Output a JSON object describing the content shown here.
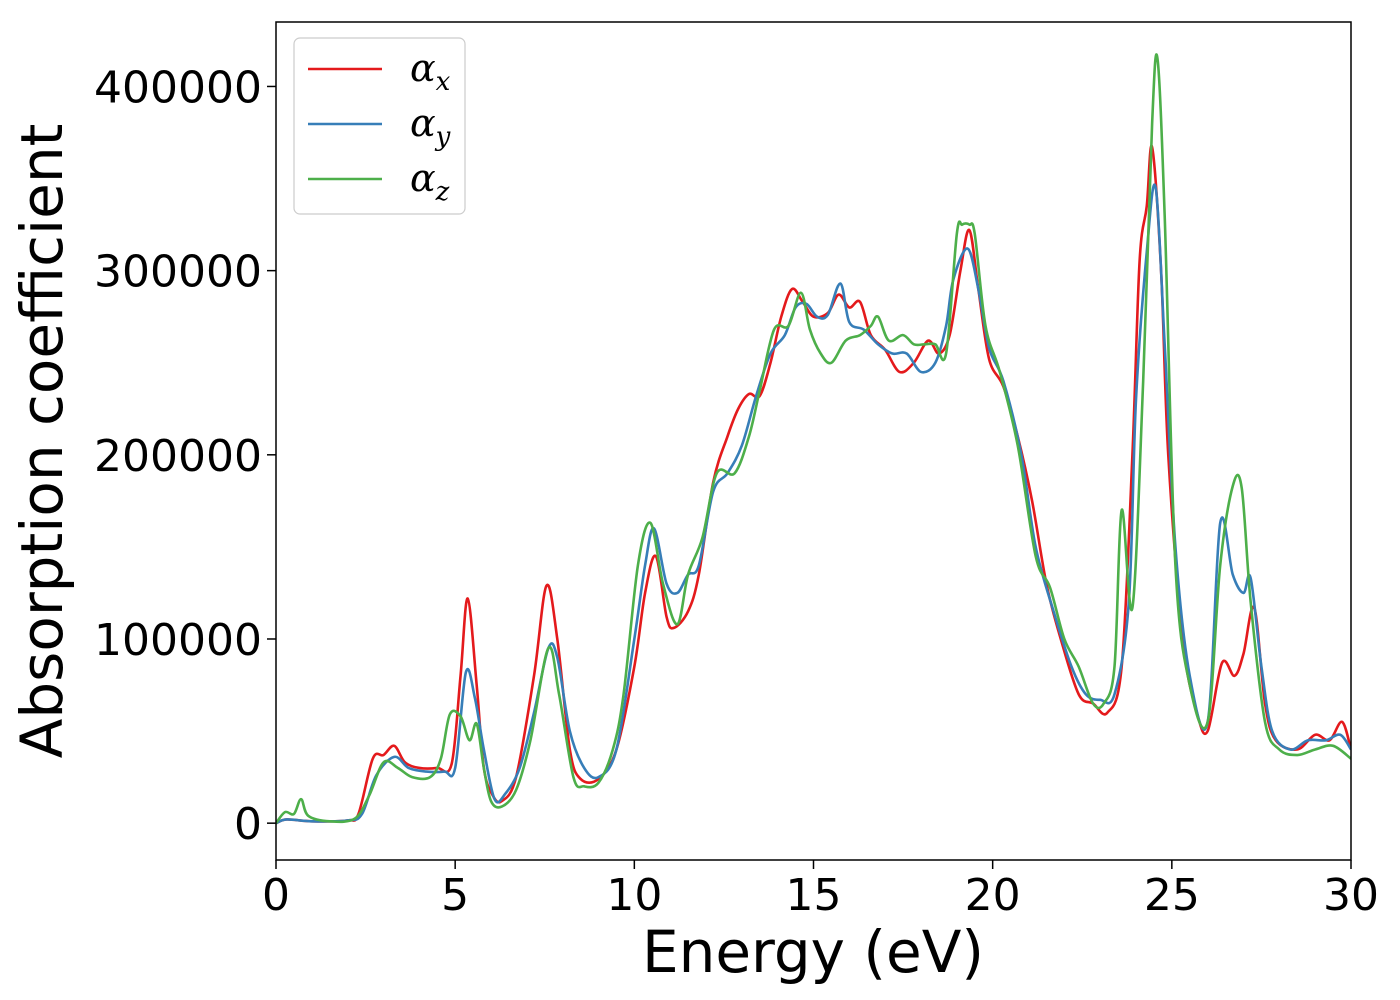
{
  "chart_data": {
    "type": "line",
    "title": "",
    "xlabel": "Energy (eV)",
    "ylabel": "Absorption coefficient",
    "xlim": [
      0,
      30
    ],
    "ylim": [
      -20000,
      435000
    ],
    "xticks": [
      0,
      5,
      10,
      15,
      20,
      25,
      30
    ],
    "yticks": [
      0,
      100000,
      200000,
      300000,
      400000
    ],
    "xtick_labels": [
      "0",
      "5",
      "10",
      "15",
      "20",
      "25",
      "30"
    ],
    "ytick_labels": [
      "0",
      "100000",
      "200000",
      "300000",
      "400000"
    ],
    "grid": false,
    "legend_position": "top-left",
    "series": [
      {
        "name": "α_x",
        "legend_symbol": "α",
        "legend_sub": "x",
        "color": "#e41a1c",
        "points": [
          [
            0,
            0
          ],
          [
            0.3,
            2000
          ],
          [
            1,
            1000
          ],
          [
            2,
            1500
          ],
          [
            2.3,
            5000
          ],
          [
            2.7,
            35000
          ],
          [
            3.0,
            37000
          ],
          [
            3.3,
            42000
          ],
          [
            3.6,
            33000
          ],
          [
            4.0,
            30000
          ],
          [
            4.5,
            30000
          ],
          [
            4.9,
            32000
          ],
          [
            5.15,
            80000
          ],
          [
            5.35,
            122000
          ],
          [
            5.6,
            75000
          ],
          [
            5.8,
            30000
          ],
          [
            6.05,
            15000
          ],
          [
            6.3,
            12000
          ],
          [
            6.7,
            25000
          ],
          [
            7.2,
            80000
          ],
          [
            7.55,
            129000
          ],
          [
            7.85,
            100000
          ],
          [
            8.2,
            40000
          ],
          [
            8.5,
            24000
          ],
          [
            9.0,
            24000
          ],
          [
            9.5,
            40000
          ],
          [
            10.0,
            85000
          ],
          [
            10.3,
            125000
          ],
          [
            10.6,
            145000
          ],
          [
            10.9,
            112000
          ],
          [
            11.1,
            106000
          ],
          [
            11.5,
            115000
          ],
          [
            11.8,
            135000
          ],
          [
            12.2,
            185000
          ],
          [
            12.6,
            210000
          ],
          [
            12.9,
            225000
          ],
          [
            13.2,
            233000
          ],
          [
            13.5,
            232000
          ],
          [
            13.8,
            250000
          ],
          [
            14.1,
            275000
          ],
          [
            14.4,
            290000
          ],
          [
            14.7,
            283000
          ],
          [
            15.0,
            275000
          ],
          [
            15.4,
            277000
          ],
          [
            15.7,
            287000
          ],
          [
            16.0,
            280000
          ],
          [
            16.3,
            283000
          ],
          [
            16.6,
            265000
          ],
          [
            17.0,
            257000
          ],
          [
            17.4,
            245000
          ],
          [
            17.8,
            250000
          ],
          [
            18.2,
            262000
          ],
          [
            18.5,
            255000
          ],
          [
            18.8,
            265000
          ],
          [
            19.1,
            300000
          ],
          [
            19.35,
            322000
          ],
          [
            19.6,
            290000
          ],
          [
            19.9,
            252000
          ],
          [
            20.3,
            237000
          ],
          [
            20.7,
            210000
          ],
          [
            21.1,
            175000
          ],
          [
            21.5,
            130000
          ],
          [
            21.9,
            100000
          ],
          [
            22.4,
            70000
          ],
          [
            22.8,
            65000
          ],
          [
            23.2,
            60000
          ],
          [
            23.6,
            85000
          ],
          [
            23.9,
            200000
          ],
          [
            24.1,
            305000
          ],
          [
            24.3,
            335000
          ],
          [
            24.45,
            367000
          ],
          [
            24.7,
            300000
          ],
          [
            24.9,
            200000
          ],
          [
            25.3,
            100000
          ],
          [
            25.7,
            60000
          ],
          [
            26.0,
            50000
          ],
          [
            26.4,
            87000
          ],
          [
            26.75,
            80000
          ],
          [
            27.0,
            92000
          ],
          [
            27.3,
            117000
          ],
          [
            27.6,
            65000
          ],
          [
            27.9,
            45000
          ],
          [
            28.5,
            40000
          ],
          [
            29.0,
            48000
          ],
          [
            29.4,
            45000
          ],
          [
            29.75,
            55000
          ],
          [
            30,
            40000
          ]
        ]
      },
      {
        "name": "α_y",
        "legend_symbol": "α",
        "legend_sub": "y",
        "color": "#377eb8",
        "points": [
          [
            0,
            0
          ],
          [
            0.3,
            2000
          ],
          [
            1,
            1000
          ],
          [
            2,
            1500
          ],
          [
            2.4,
            5000
          ],
          [
            2.8,
            26000
          ],
          [
            3.3,
            36000
          ],
          [
            3.7,
            30000
          ],
          [
            4.2,
            28000
          ],
          [
            4.7,
            28000
          ],
          [
            5.0,
            30000
          ],
          [
            5.3,
            82000
          ],
          [
            5.55,
            68000
          ],
          [
            5.8,
            40000
          ],
          [
            6.1,
            13000
          ],
          [
            6.4,
            16000
          ],
          [
            6.8,
            30000
          ],
          [
            7.2,
            60000
          ],
          [
            7.6,
            95000
          ],
          [
            7.85,
            90000
          ],
          [
            8.2,
            50000
          ],
          [
            8.6,
            30000
          ],
          [
            9.0,
            25000
          ],
          [
            9.5,
            40000
          ],
          [
            10.0,
            100000
          ],
          [
            10.3,
            140000
          ],
          [
            10.55,
            160000
          ],
          [
            10.9,
            130000
          ],
          [
            11.2,
            125000
          ],
          [
            11.5,
            135000
          ],
          [
            11.8,
            140000
          ],
          [
            12.2,
            180000
          ],
          [
            12.6,
            190000
          ],
          [
            13.0,
            205000
          ],
          [
            13.4,
            232000
          ],
          [
            13.8,
            255000
          ],
          [
            14.2,
            265000
          ],
          [
            14.5,
            280000
          ],
          [
            14.8,
            282000
          ],
          [
            15.1,
            275000
          ],
          [
            15.4,
            276000
          ],
          [
            15.75,
            293000
          ],
          [
            16.0,
            272000
          ],
          [
            16.4,
            268000
          ],
          [
            16.8,
            260000
          ],
          [
            17.2,
            255000
          ],
          [
            17.6,
            255000
          ],
          [
            18.0,
            245000
          ],
          [
            18.4,
            250000
          ],
          [
            18.7,
            270000
          ],
          [
            18.9,
            295000
          ],
          [
            19.3,
            312000
          ],
          [
            19.6,
            290000
          ],
          [
            19.9,
            258000
          ],
          [
            20.3,
            240000
          ],
          [
            20.8,
            200000
          ],
          [
            21.2,
            150000
          ],
          [
            21.7,
            115000
          ],
          [
            22.2,
            85000
          ],
          [
            22.6,
            70000
          ],
          [
            23.0,
            67000
          ],
          [
            23.4,
            70000
          ],
          [
            23.8,
            120000
          ],
          [
            24.0,
            230000
          ],
          [
            24.3,
            310000
          ],
          [
            24.55,
            345000
          ],
          [
            24.8,
            260000
          ],
          [
            25.1,
            150000
          ],
          [
            25.5,
            80000
          ],
          [
            26.0,
            55000
          ],
          [
            26.35,
            163000
          ],
          [
            26.7,
            135000
          ],
          [
            27.0,
            125000
          ],
          [
            27.2,
            133000
          ],
          [
            27.5,
            85000
          ],
          [
            27.8,
            50000
          ],
          [
            28.3,
            40000
          ],
          [
            28.8,
            45000
          ],
          [
            29.3,
            45000
          ],
          [
            29.7,
            48000
          ],
          [
            30,
            40000
          ]
        ]
      },
      {
        "name": "α_z",
        "legend_symbol": "α",
        "legend_sub": "z",
        "color": "#4daf4a",
        "points": [
          [
            0,
            0
          ],
          [
            0.25,
            6000
          ],
          [
            0.5,
            5000
          ],
          [
            0.7,
            13000
          ],
          [
            0.9,
            4000
          ],
          [
            1.5,
            1000
          ],
          [
            2.2,
            2500
          ],
          [
            2.6,
            15000
          ],
          [
            3.0,
            33000
          ],
          [
            3.4,
            30000
          ],
          [
            3.8,
            25000
          ],
          [
            4.3,
            25000
          ],
          [
            4.6,
            35000
          ],
          [
            4.85,
            59000
          ],
          [
            5.15,
            58000
          ],
          [
            5.4,
            45000
          ],
          [
            5.6,
            54000
          ],
          [
            5.8,
            30000
          ],
          [
            6.0,
            12000
          ],
          [
            6.3,
            9000
          ],
          [
            6.7,
            18000
          ],
          [
            7.1,
            45000
          ],
          [
            7.6,
            95000
          ],
          [
            7.9,
            70000
          ],
          [
            8.3,
            25000
          ],
          [
            8.6,
            20000
          ],
          [
            9.0,
            22000
          ],
          [
            9.4,
            40000
          ],
          [
            9.7,
            70000
          ],
          [
            10.1,
            140000
          ],
          [
            10.45,
            163000
          ],
          [
            10.8,
            130000
          ],
          [
            11.2,
            108000
          ],
          [
            11.5,
            135000
          ],
          [
            11.9,
            155000
          ],
          [
            12.3,
            190000
          ],
          [
            12.8,
            190000
          ],
          [
            13.2,
            210000
          ],
          [
            13.5,
            235000
          ],
          [
            13.9,
            268000
          ],
          [
            14.3,
            270000
          ],
          [
            14.65,
            288000
          ],
          [
            14.9,
            268000
          ],
          [
            15.2,
            255000
          ],
          [
            15.5,
            250000
          ],
          [
            15.9,
            262000
          ],
          [
            16.3,
            265000
          ],
          [
            16.6,
            270000
          ],
          [
            16.8,
            275000
          ],
          [
            17.1,
            262000
          ],
          [
            17.5,
            265000
          ],
          [
            17.8,
            260000
          ],
          [
            18.1,
            260000
          ],
          [
            18.4,
            260000
          ],
          [
            18.7,
            255000
          ],
          [
            19.0,
            320000
          ],
          [
            19.15,
            325000
          ],
          [
            19.35,
            325000
          ],
          [
            19.5,
            320000
          ],
          [
            19.8,
            270000
          ],
          [
            20.2,
            245000
          ],
          [
            20.7,
            205000
          ],
          [
            21.2,
            145000
          ],
          [
            21.6,
            128000
          ],
          [
            22.0,
            100000
          ],
          [
            22.4,
            85000
          ],
          [
            22.8,
            65000
          ],
          [
            23.1,
            65000
          ],
          [
            23.4,
            85000
          ],
          [
            23.6,
            170000
          ],
          [
            23.9,
            117000
          ],
          [
            24.2,
            240000
          ],
          [
            24.45,
            380000
          ],
          [
            24.6,
            415000
          ],
          [
            24.8,
            330000
          ],
          [
            25.1,
            140000
          ],
          [
            25.5,
            75000
          ],
          [
            26.0,
            55000
          ],
          [
            26.35,
            140000
          ],
          [
            26.7,
            183000
          ],
          [
            26.95,
            182000
          ],
          [
            27.2,
            120000
          ],
          [
            27.6,
            55000
          ],
          [
            28.0,
            40000
          ],
          [
            28.5,
            37000
          ],
          [
            29.0,
            40000
          ],
          [
            29.5,
            42000
          ],
          [
            30,
            35000
          ]
        ]
      }
    ]
  }
}
